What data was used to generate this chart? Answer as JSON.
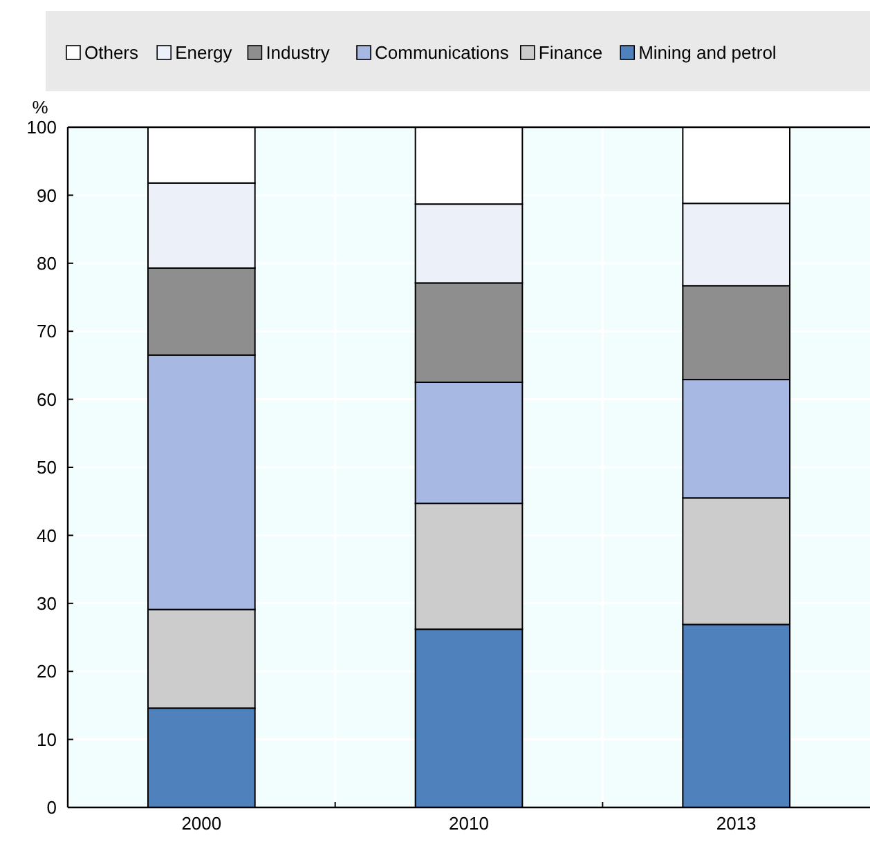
{
  "chart_data": {
    "type": "bar",
    "stacked": true,
    "ylabel": "%",
    "categories": [
      "2000",
      "2010",
      "2013"
    ],
    "series": [
      {
        "name": "Mining and petrol",
        "color": "#4f81bd",
        "values": [
          14.6,
          26.2,
          26.9
        ]
      },
      {
        "name": "Finance",
        "color": "#cccccc",
        "values": [
          14.5,
          18.5,
          18.6
        ]
      },
      {
        "name": "Communications",
        "color": "#a7b8e2",
        "values": [
          37.4,
          17.8,
          17.4
        ]
      },
      {
        "name": "Industry",
        "color": "#8e8e8e",
        "values": [
          12.8,
          14.6,
          13.8
        ]
      },
      {
        "name": "Energy",
        "color": "#ecf0f8",
        "values": [
          12.5,
          11.6,
          12.1
        ]
      },
      {
        "name": "Others",
        "color": "#ffffff",
        "values": [
          8.2,
          11.3,
          11.2
        ]
      }
    ],
    "ylim": [
      0,
      100
    ],
    "yticks": [
      0,
      10,
      20,
      30,
      40,
      50,
      60,
      70,
      80,
      90,
      100
    ],
    "grid": true,
    "legend": "top"
  }
}
